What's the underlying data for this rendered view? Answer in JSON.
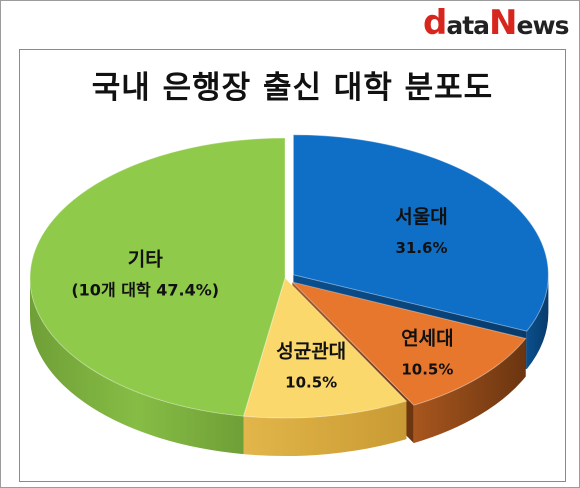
{
  "logo": {
    "part1": "d",
    "part2": "ata",
    "part3": "N",
    "part4": "ews"
  },
  "chart_data": {
    "type": "pie",
    "title": "국내 은행장 출신 대학 분포도",
    "slices": [
      {
        "name": "서울대",
        "value": 31.6,
        "label": "31.6%",
        "color": "#0f6fc6"
      },
      {
        "name": "연세대",
        "value": 10.5,
        "label": "10.5%",
        "color": "#e8772e"
      },
      {
        "name": "성균관대",
        "value": 10.5,
        "label": "10.5%",
        "color": "#fbd86b"
      },
      {
        "name": "기타",
        "value": 47.4,
        "label": "(10개 대학 47.4%)",
        "color": "#8fca4a"
      }
    ],
    "style": "3d-exploded"
  }
}
